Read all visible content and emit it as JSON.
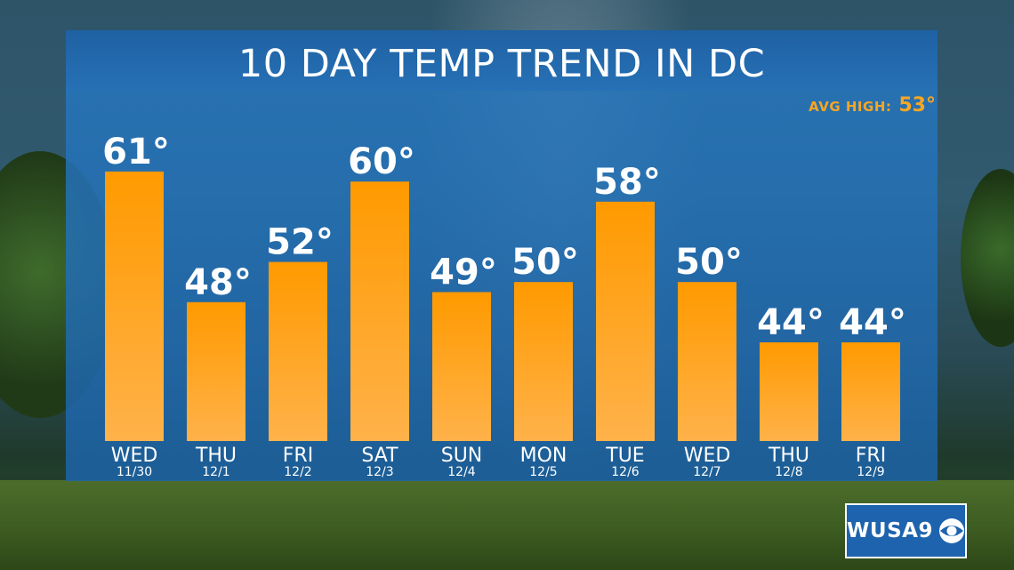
{
  "header": {
    "title": "10 DAY TEMP TREND IN DC",
    "avg_high_label": "AVG HIGH:",
    "avg_high_value": "53°"
  },
  "logo": {
    "text": "WUSA9",
    "icon": "cbs-eye-icon"
  },
  "colors": {
    "bar_top": "#ff9a00",
    "bar_bottom": "#ffb24a",
    "accent": "#f7a623",
    "panel": "#2a78bf",
    "text": "#ffffff"
  },
  "chart_data": {
    "type": "bar",
    "title": "10 DAY TEMP TREND IN DC",
    "categories": [
      "WED",
      "THU",
      "FRI",
      "SAT",
      "SUN",
      "MON",
      "TUE",
      "WED",
      "THU",
      "FRI"
    ],
    "dates": [
      "11/30",
      "12/1",
      "12/2",
      "12/3",
      "12/4",
      "12/5",
      "12/6",
      "12/7",
      "12/8",
      "12/9"
    ],
    "values": [
      61,
      48,
      52,
      60,
      49,
      50,
      58,
      50,
      44,
      44
    ],
    "value_labels": [
      "61°",
      "48°",
      "52°",
      "60°",
      "49°",
      "50°",
      "58°",
      "50°",
      "44°",
      "44°"
    ],
    "xlabel": "",
    "ylabel": "",
    "grid": false,
    "annotation": "AVG HIGH: 53°"
  }
}
